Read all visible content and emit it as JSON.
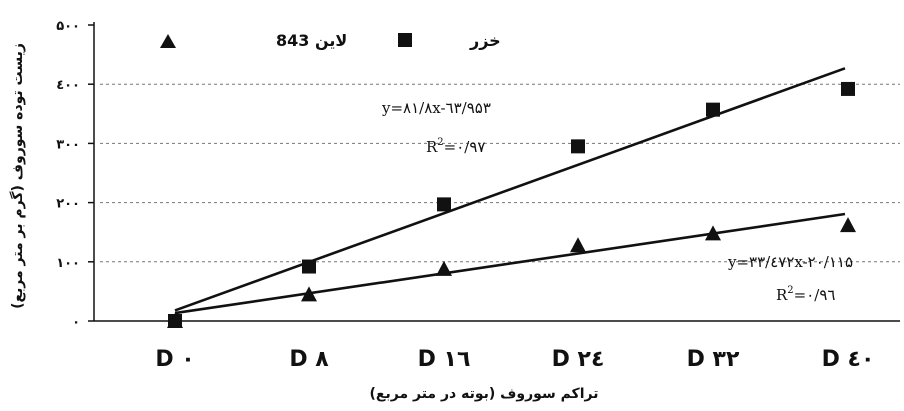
{
  "chart_data": {
    "type": "scatter",
    "ylabel": "زیست توده سوروف (گرم بر متر مربع)",
    "xlabel": "تراکم سوروف (بوته در متر مربع)",
    "categories": [
      "D ۰",
      "D ۸",
      "D ۱٦",
      "D ۲٤",
      "D ۳۲",
      "D ٤۰"
    ],
    "y_ticks": [
      {
        "value": 0,
        "label": "۰"
      },
      {
        "value": 100,
        "label": "۱۰۰"
      },
      {
        "value": 200,
        "label": "۲۰۰"
      },
      {
        "value": 300,
        "label": "۳۰۰"
      },
      {
        "value": 400,
        "label": "٤۰۰"
      },
      {
        "value": 500,
        "label": "۵۰۰"
      }
    ],
    "ylim": [
      0,
      500
    ],
    "grid": "horizontal dashed at 100, 200, 300, 400",
    "legend_placement": "top",
    "series": [
      {
        "name": "خزر",
        "marker": "square",
        "color": "#111111",
        "values": [
          0,
          92,
          197,
          295,
          357,
          392
        ],
        "trendline": {
          "slope": 81.8,
          "intercept": -63.953,
          "x_start": 1,
          "x_end": 6
        },
        "equation": "y=۸۱/۸x-٦۳/۹۵۳",
        "r2_label": "R",
        "r2_value": "=۰/۹۷"
      },
      {
        "name": "لاین 843",
        "marker": "triangle",
        "color": "#111111",
        "values": [
          0,
          45,
          88,
          128,
          148,
          162
        ],
        "trendline": {
          "slope": 33.472,
          "intercept": -20.115,
          "x_start": 1,
          "x_end": 6
        },
        "equation": "y=۳۳/٤۷۲x-۲۰/۱۱۵",
        "r2_label": "R",
        "r2_value": "=۰/۹٦"
      }
    ],
    "r2_superscript": "2"
  }
}
